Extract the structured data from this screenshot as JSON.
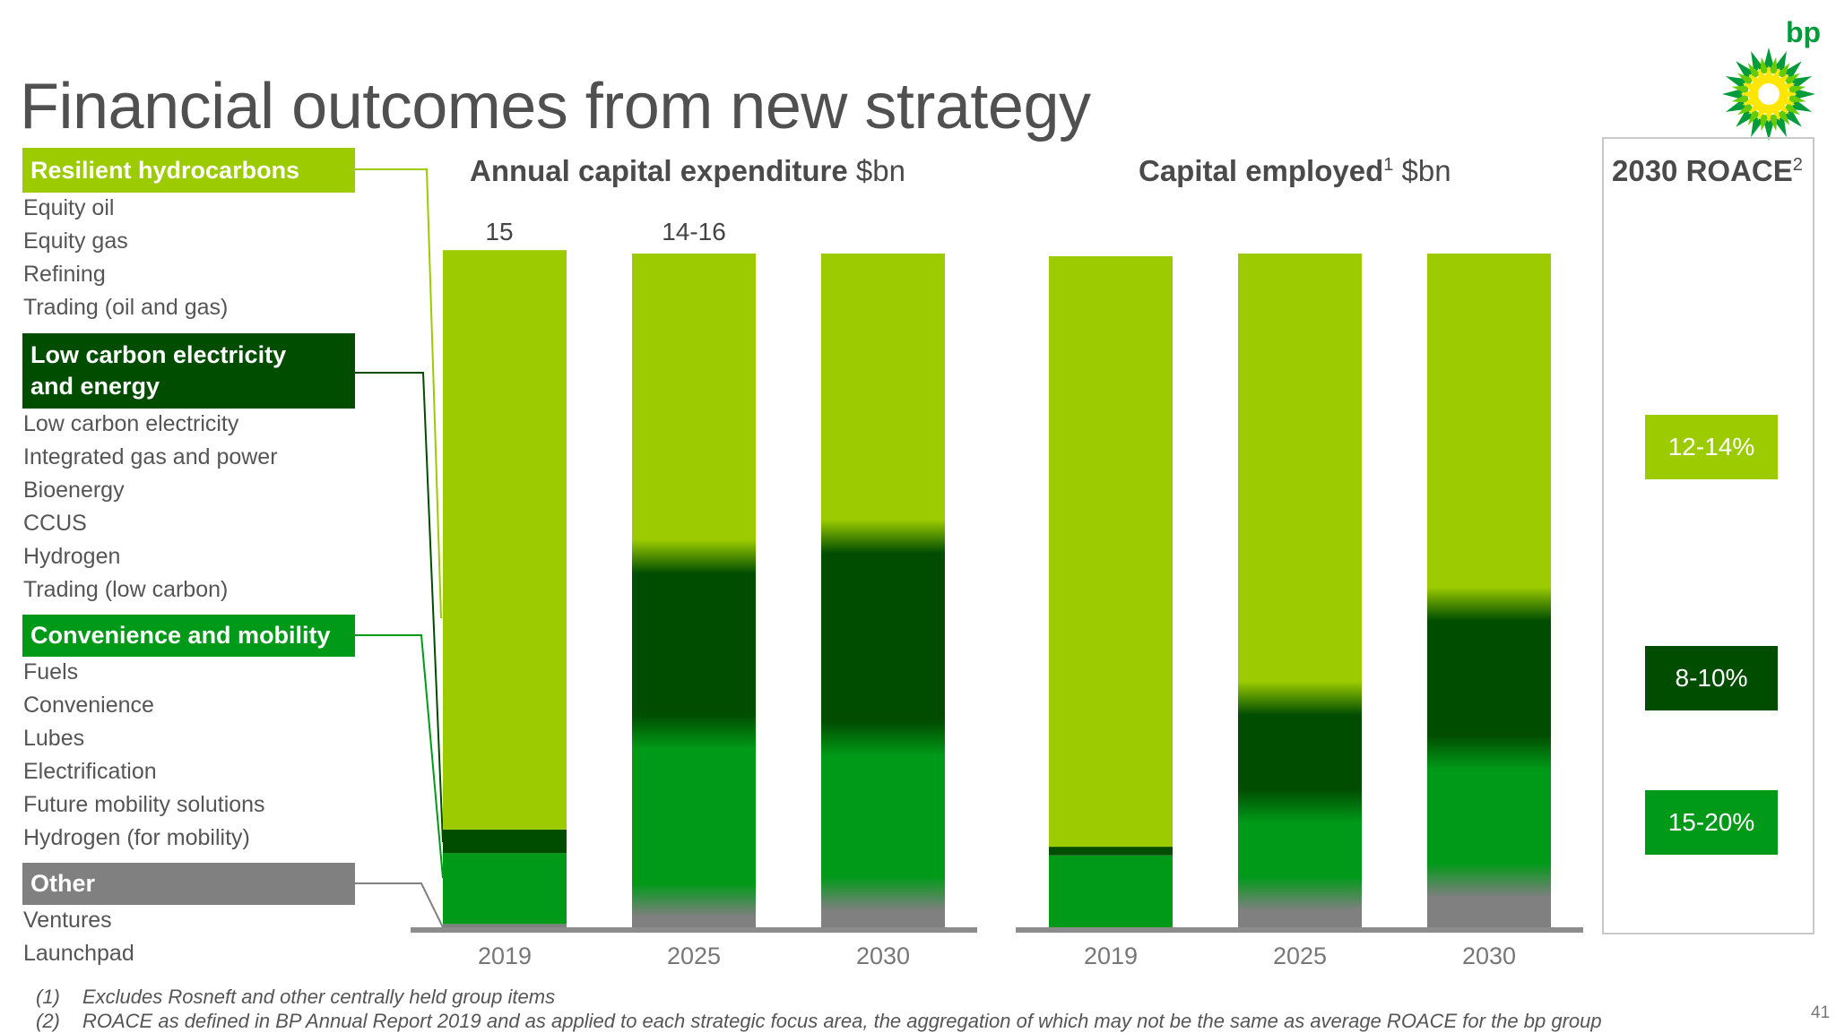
{
  "page": {
    "title": "Financial outcomes from new strategy",
    "page_number": "41",
    "logo_text": "bp"
  },
  "colors": {
    "resilient_hydrocarbons": "#9bcb00",
    "low_carbon_electricity": "#004d00",
    "convenience_mobility": "#009a18",
    "other": "#808080",
    "axis": "#8c8c8c"
  },
  "segments": [
    {
      "key": "resilient_hydrocarbons",
      "label": "Resilient hydrocarbons",
      "items": [
        "Equity oil",
        "Equity gas",
        "Refining",
        "Trading (oil and gas)"
      ]
    },
    {
      "key": "low_carbon_electricity",
      "label_lines": [
        "Low carbon electricity",
        "and energy"
      ],
      "items": [
        "Low carbon electricity",
        "Integrated gas and power",
        "Bioenergy",
        "CCUS",
        "Hydrogen",
        "Trading (low carbon)"
      ]
    },
    {
      "key": "convenience_mobility",
      "label": "Convenience and mobility",
      "items": [
        "Fuels",
        "Convenience",
        "Lubes",
        "Electrification",
        "Future mobility solutions",
        "Hydrogen (for mobility)"
      ]
    },
    {
      "key": "other",
      "label": "Other",
      "items": [
        "Ventures",
        "Launchpad"
      ]
    }
  ],
  "chart_data": [
    {
      "type": "bar",
      "stacked": true,
      "title": "Annual capital expenditure",
      "unit": "$bn",
      "categories": [
        "2019",
        "2025",
        "2030"
      ],
      "totals": [
        "15",
        "14-16",
        ""
      ],
      "series": [
        {
          "name": "Resilient hydrocarbons",
          "key": "resilient_hydrocarbons",
          "shares": [
            0.86,
            0.45,
            0.42
          ]
        },
        {
          "name": "Low carbon electricity and energy",
          "key": "low_carbon_electricity",
          "shares": [
            0.035,
            0.26,
            0.3
          ]
        },
        {
          "name": "Convenience and mobility",
          "key": "convenience_mobility",
          "shares": [
            0.105,
            0.25,
            0.23
          ]
        },
        {
          "name": "Other",
          "key": "other",
          "shares": [
            0.005,
            0.04,
            0.05
          ]
        }
      ],
      "blended_transitions": [
        false,
        true,
        true
      ]
    },
    {
      "type": "bar",
      "stacked": true,
      "title": "Capital employed",
      "title_sup": "1",
      "unit": "$bn",
      "categories": [
        "2019",
        "2025",
        "2030"
      ],
      "totals": [
        "",
        "",
        ""
      ],
      "series": [
        {
          "name": "Resilient hydrocarbons",
          "key": "resilient_hydrocarbons",
          "shares": [
            0.88,
            0.66,
            0.52
          ]
        },
        {
          "name": "Low carbon electricity and energy",
          "key": "low_carbon_electricity",
          "shares": [
            0.013,
            0.16,
            0.22
          ]
        },
        {
          "name": "Convenience and mobility",
          "key": "convenience_mobility",
          "shares": [
            0.107,
            0.13,
            0.19
          ]
        },
        {
          "name": "Other",
          "key": "other",
          "shares": [
            0.0,
            0.05,
            0.07
          ]
        }
      ],
      "blended_transitions": [
        false,
        true,
        true
      ]
    }
  ],
  "roace": {
    "title": "2030 ROACE",
    "title_sup": "2",
    "values": [
      {
        "key": "resilient_hydrocarbons",
        "label": "12-14%"
      },
      {
        "key": "low_carbon_electricity",
        "label": "8-10%"
      },
      {
        "key": "convenience_mobility",
        "label": "15-20%"
      }
    ]
  },
  "footnotes": [
    {
      "num": "(1)",
      "text": "Excludes Rosneft and other centrally held group items"
    },
    {
      "num": "(2)",
      "text": "ROACE as defined in BP Annual Report 2019 and as applied to each strategic focus area, the aggregation of which may not be the same as average ROACE for the bp group"
    }
  ]
}
